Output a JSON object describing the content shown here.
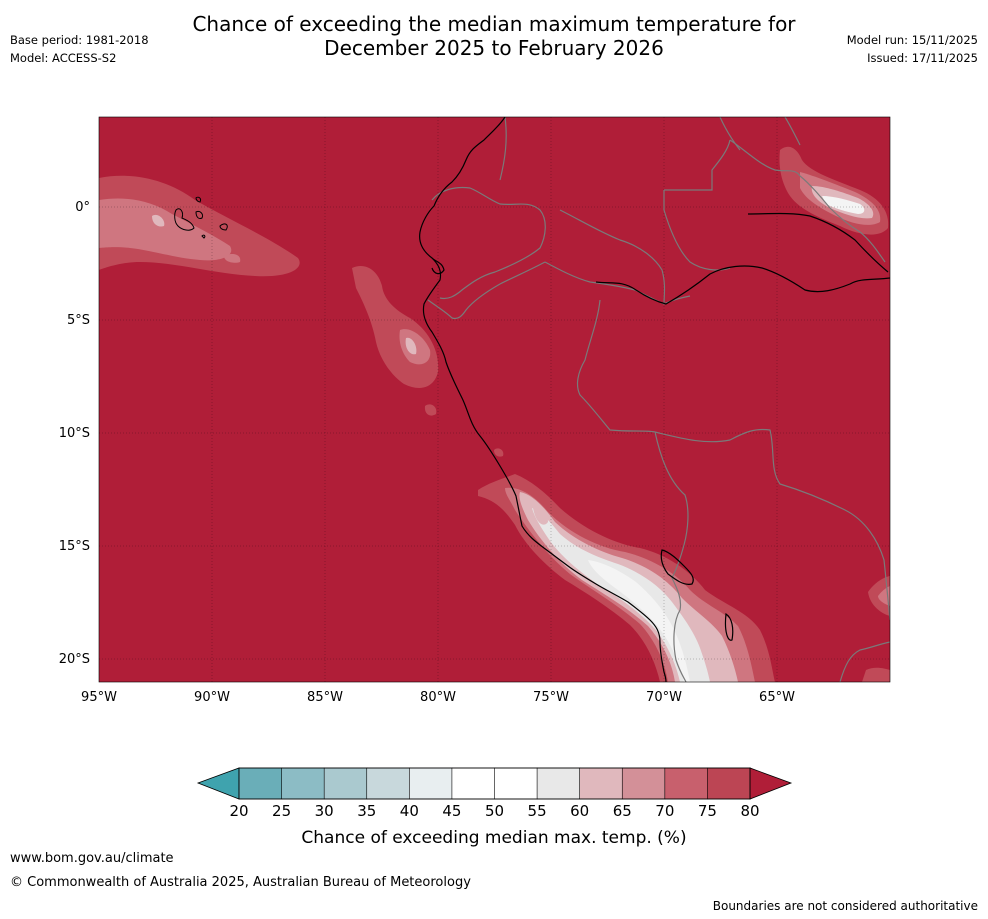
{
  "title_line1": "Chance of exceeding the median maximum temperature for",
  "title_line2": "December 2025 to February 2026",
  "base_period": "Base period: 1981-2018",
  "model": "Model: ACCESS-S2",
  "model_run": "Model run: 15/11/2025",
  "issued": "Issued: 17/11/2025",
  "footer_url": "www.bom.gov.au/climate",
  "footer_copyright": "© Commonwealth of Australia 2025, Australian Bureau of Meteorology",
  "footer_note": "Boundaries are not considered authoritative",
  "map": {
    "lat_labels": [
      "0°",
      "5°S",
      "10°S",
      "15°S",
      "20°S"
    ],
    "lon_labels": [
      "95°W",
      "90°W",
      "85°W",
      "80°W",
      "75°W",
      "70°W",
      "65°W"
    ],
    "background_color": "#b01e38"
  },
  "colorbar": {
    "title": "Chance of exceeding median max. temp. (%)",
    "ticks": [
      "20",
      "25",
      "30",
      "35",
      "40",
      "45",
      "50",
      "55",
      "60",
      "65",
      "70",
      "75",
      "80"
    ],
    "low_color": "#3fa3ae",
    "high_color": "#b01e38",
    "bin_colors": [
      "#6aaeb8",
      "#8cbcc5",
      "#aac9cf",
      "#c8d8dc",
      "#e8eef0",
      "#ffffff",
      "#ffffff",
      "#e8e8e8",
      "#e0b8bd",
      "#d39098",
      "#c8606d",
      "#bc4554"
    ]
  }
}
